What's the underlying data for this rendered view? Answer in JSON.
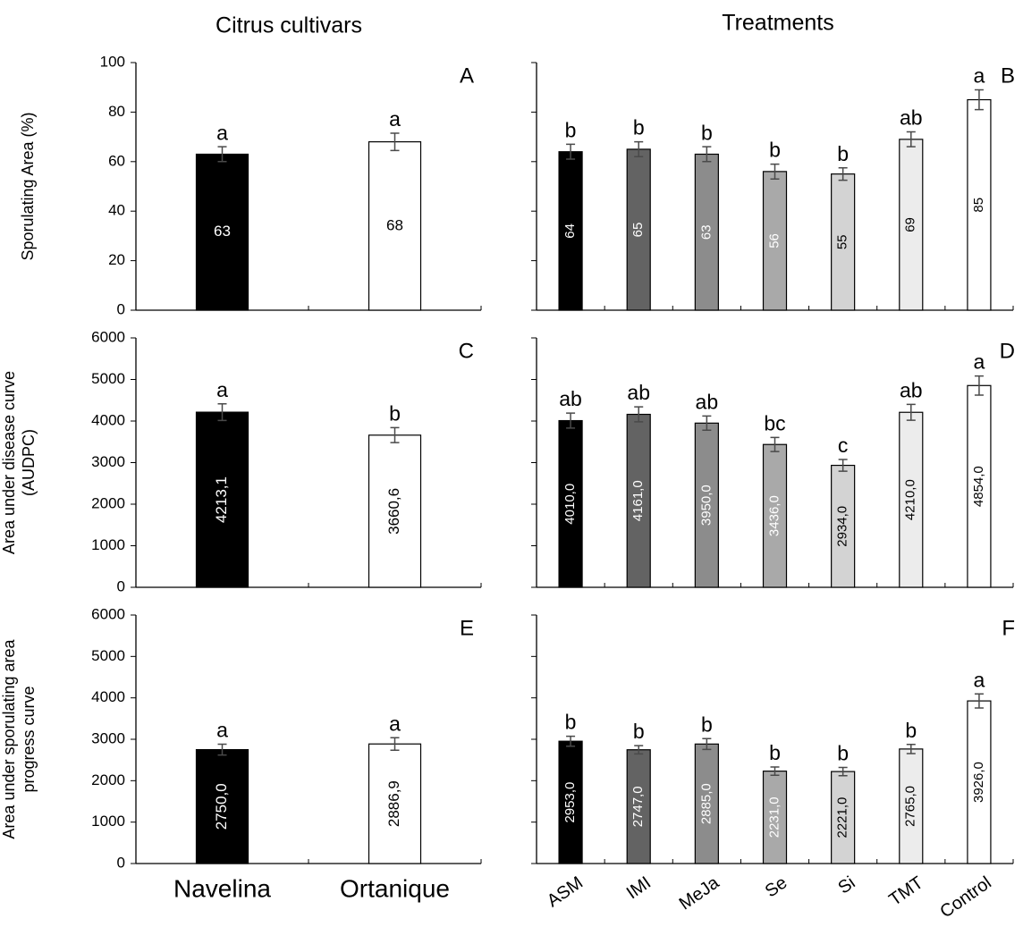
{
  "header": {
    "left_title": "Citrus cultivars",
    "right_title": "Treatments"
  },
  "chart_data": [
    {
      "type": "bar",
      "panel_label": "A",
      "ylabel": [
        "Sporulating Area (%)"
      ],
      "values": [
        63,
        68
      ],
      "errors": [
        3,
        3.5
      ],
      "letters": [
        "a",
        "a"
      ],
      "colors": [
        "#000000",
        "#ffffff"
      ],
      "value_label_orientation": "horizontal",
      "ylim": [
        0,
        100
      ],
      "yticks": [
        0,
        20,
        40,
        60,
        80,
        100
      ],
      "ytick_labels": true
    },
    {
      "type": "bar",
      "panel_label": "B",
      "values": [
        64,
        65,
        63,
        56,
        55,
        69,
        85
      ],
      "errors": [
        3,
        3,
        3,
        3,
        2.5,
        3,
        4
      ],
      "letters": [
        "b",
        "b",
        "b",
        "b",
        "b",
        "ab",
        "a"
      ],
      "colors": [
        "#000000",
        "#636363",
        "#8c8c8c",
        "#a9a9a9",
        "#d3d3d3",
        "#ececec",
        "#ffffff"
      ],
      "value_label_orientation": "vertical",
      "ylim": [
        0,
        100
      ],
      "yticks": [
        0,
        20,
        40,
        60,
        80,
        100
      ],
      "ytick_labels": false
    },
    {
      "type": "bar",
      "panel_label": "C",
      "ylabel": [
        "Area under disease curve",
        "(AUDPC)"
      ],
      "values": [
        4213.1,
        3660.6
      ],
      "value_labels": [
        "4213,1",
        "3660,6"
      ],
      "errors": [
        200,
        180
      ],
      "letters": [
        "a",
        "b"
      ],
      "colors": [
        "#000000",
        "#ffffff"
      ],
      "value_label_orientation": "vertical",
      "ylim": [
        0,
        6000
      ],
      "yticks": [
        0,
        1000,
        2000,
        3000,
        4000,
        5000,
        6000
      ],
      "ytick_labels": true
    },
    {
      "type": "bar",
      "panel_label": "D",
      "values": [
        4010,
        4161,
        3950,
        3436,
        2934,
        4210,
        4854
      ],
      "value_labels": [
        "4010,0",
        "4161,0",
        "3950,0",
        "3436,0",
        "2934,0",
        "4210,0",
        "4854,0"
      ],
      "errors": [
        180,
        180,
        170,
        170,
        140,
        190,
        230
      ],
      "letters": [
        "ab",
        "ab",
        "ab",
        "bc",
        "c",
        "ab",
        "a"
      ],
      "colors": [
        "#000000",
        "#636363",
        "#8c8c8c",
        "#a9a9a9",
        "#d3d3d3",
        "#ececec",
        "#ffffff"
      ],
      "value_label_orientation": "vertical",
      "ylim": [
        0,
        6000
      ],
      "yticks": [
        0,
        1000,
        2000,
        3000,
        4000,
        5000,
        6000
      ],
      "ytick_labels": false
    },
    {
      "type": "bar",
      "panel_label": "E",
      "ylabel": [
        "Area under sporulating area",
        "progress curve"
      ],
      "categories": [
        "Navelina",
        "Ortanique"
      ],
      "values": [
        2750,
        2886.9
      ],
      "value_labels": [
        "2750,0",
        "2886,9"
      ],
      "errors": [
        130,
        150
      ],
      "letters": [
        "a",
        "a"
      ],
      "colors": [
        "#000000",
        "#ffffff"
      ],
      "value_label_orientation": "vertical",
      "ylim": [
        0,
        6000
      ],
      "yticks": [
        0,
        1000,
        2000,
        3000,
        4000,
        5000,
        6000
      ],
      "ytick_labels": true
    },
    {
      "type": "bar",
      "panel_label": "F",
      "categories": [
        "ASM",
        "IMI",
        "MeJa",
        "Se",
        "Si",
        "TMT",
        "Control"
      ],
      "values": [
        2953,
        2747,
        2885,
        2231,
        2221,
        2765,
        3926
      ],
      "value_labels": [
        "2953,0",
        "2747,0",
        "2885,0",
        "2231,0",
        "2221,0",
        "2765,0",
        "3926,0"
      ],
      "errors": [
        120,
        100,
        130,
        100,
        100,
        110,
        170
      ],
      "letters": [
        "b",
        "b",
        "b",
        "b",
        "b",
        "b",
        "a"
      ],
      "colors": [
        "#000000",
        "#636363",
        "#8c8c8c",
        "#a9a9a9",
        "#d3d3d3",
        "#ececec",
        "#ffffff"
      ],
      "value_label_orientation": "vertical",
      "ylim": [
        0,
        6000
      ],
      "yticks": [
        0,
        1000,
        2000,
        3000,
        4000,
        5000,
        6000
      ],
      "ytick_labels": false
    }
  ]
}
